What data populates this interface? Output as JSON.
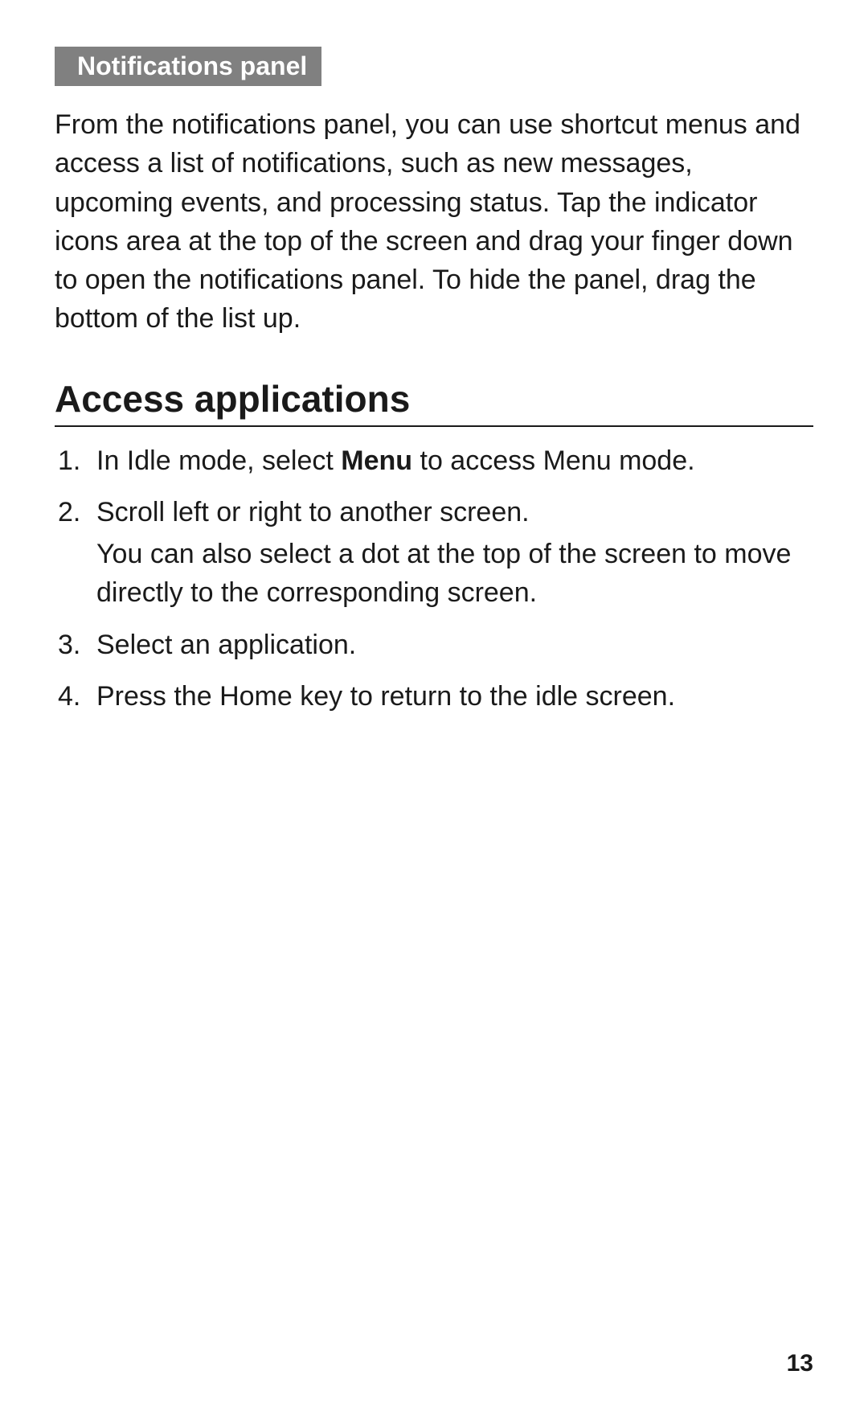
{
  "subsection": {
    "label": "Notifications panel",
    "body": "From the notifications panel, you can use shortcut menus and access a list of notifications, such as new messages, upcoming events, and processing status. Tap the indicator icons area at the top of the screen and drag your finger down to open the notifications panel. To hide the panel, drag the bottom of the list up."
  },
  "section": {
    "heading": "Access applications",
    "steps": [
      {
        "prefix": "In Idle mode, select ",
        "bold": "Menu",
        "suffix": " to access Menu mode."
      },
      {
        "main": "Scroll left or right to another screen.",
        "sub": "You can also select a dot at the top of the screen to move directly to the corresponding screen."
      },
      {
        "main": "Select an application."
      },
      {
        "main": "Press the Home key to return to the idle screen."
      }
    ]
  },
  "pageNumber": "13"
}
